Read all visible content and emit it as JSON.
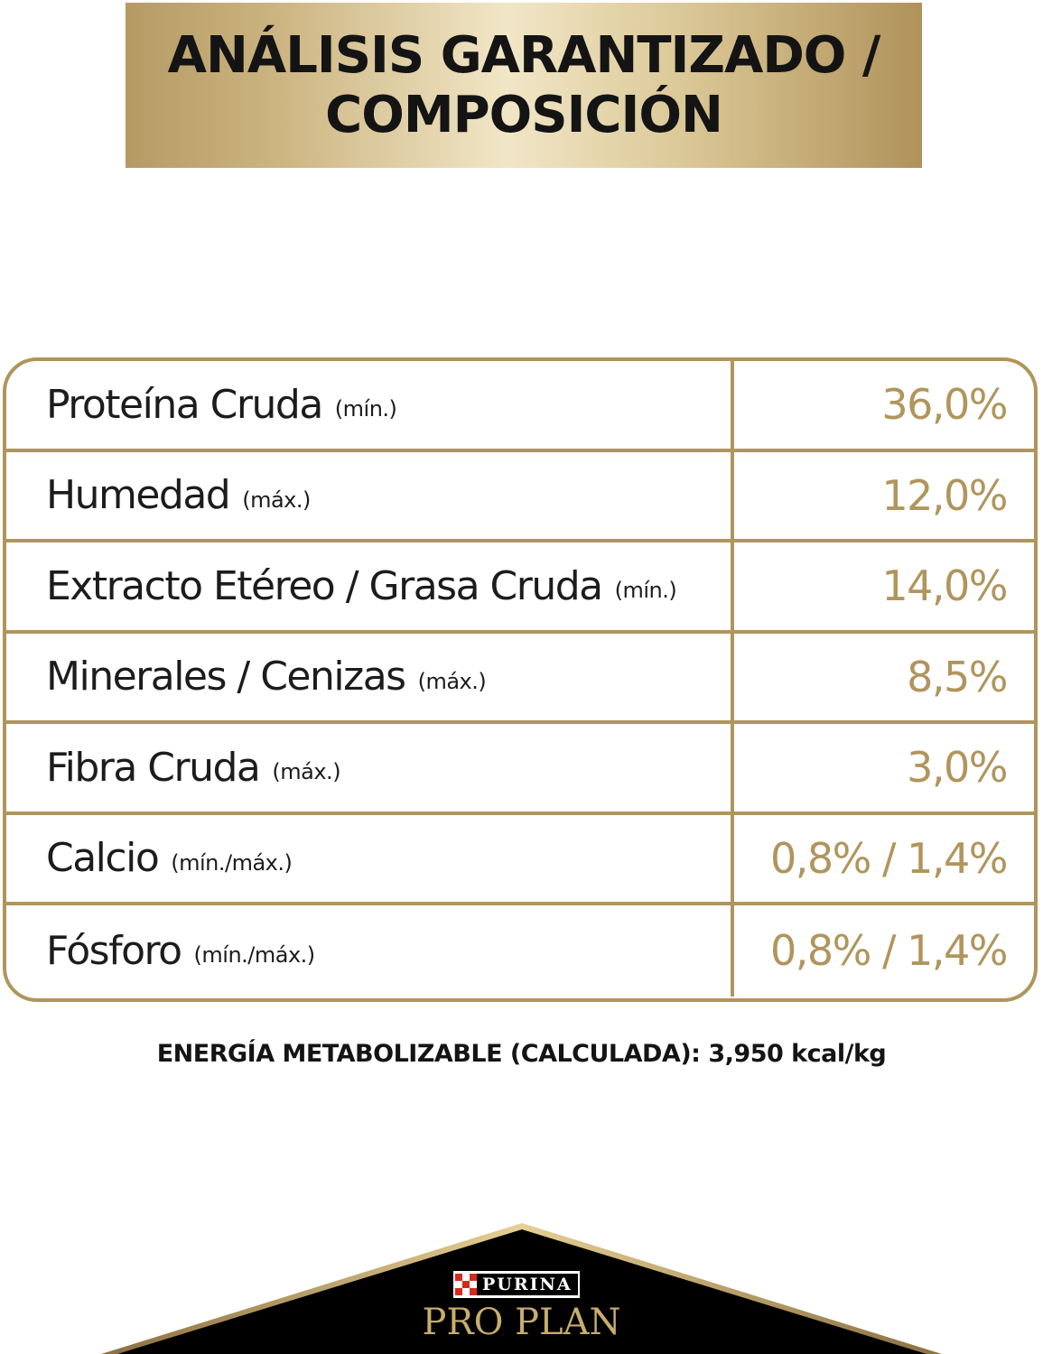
{
  "header": {
    "title_line1": "ANÁLISIS GARANTIZADO /",
    "title_line2": "COMPOSICIÓN"
  },
  "analysis": {
    "rows": [
      {
        "label": "Proteína Cruda",
        "qualifier": "(mín.)",
        "value": "36,0%"
      },
      {
        "label": "Humedad",
        "qualifier": "(máx.)",
        "value": "12,0%"
      },
      {
        "label": "Extracto Etéreo / Grasa Cruda",
        "qualifier": "(mín.)",
        "value": "14,0%"
      },
      {
        "label": "Minerales / Cenizas",
        "qualifier": "(máx.)",
        "value": "8,5%"
      },
      {
        "label": "Fibra Cruda",
        "qualifier": "(máx.)",
        "value": "3,0%"
      },
      {
        "label": "Calcio",
        "qualifier": "(mín./máx.)",
        "value": "0,8% / 1,4%"
      },
      {
        "label": "Fósforo",
        "qualifier": "(mín./máx.)",
        "value": "0,8% / 1,4%"
      }
    ]
  },
  "footer": {
    "energy_text": "ENERGÍA METABOLIZABLE (CALCULADA): 3,950 kcal/kg"
  },
  "logo": {
    "purina": "PURINA",
    "proplan": "PRO PLAN"
  },
  "colors": {
    "gold": "#b0955c",
    "text": "#1c1c1c",
    "logo_background": "#000000",
    "purina_red": "#d52b1e"
  }
}
